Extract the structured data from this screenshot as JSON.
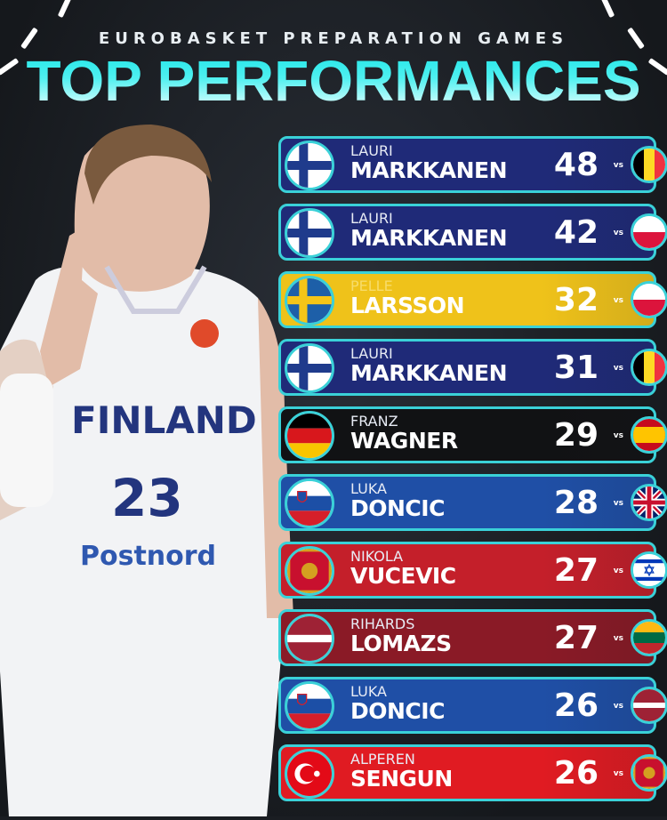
{
  "header": {
    "subtitle": "EUROBASKET PREPARATION GAMES",
    "title": "TOP PERFORMANCES"
  },
  "photo": {
    "jersey_team": "FINLAND",
    "jersey_number": "23",
    "sponsor": "Postnord"
  },
  "colors": {
    "accent": "#3ad1d8",
    "title_cyan": "#20e6e8"
  },
  "performances": [
    {
      "first": "LAURI",
      "last": "MARKKANEN",
      "points": "48",
      "vs": "vs",
      "country": "finland",
      "opponent": "belgium",
      "bar": "#1f2a78"
    },
    {
      "first": "LAURI",
      "last": "MARKKANEN",
      "points": "42",
      "vs": "vs",
      "country": "finland",
      "opponent": "poland",
      "bar": "#1f2a78"
    },
    {
      "first": "PELLE",
      "last": "LARSSON",
      "points": "32",
      "vs": "vs",
      "country": "sweden",
      "opponent": "poland",
      "bar": "#efc21a"
    },
    {
      "first": "LAURI",
      "last": "MARKKANEN",
      "points": "31",
      "vs": "vs",
      "country": "finland",
      "opponent": "belgium",
      "bar": "#1f2a78"
    },
    {
      "first": "FRANZ",
      "last": "WAGNER",
      "points": "29",
      "vs": "vs",
      "country": "germany",
      "opponent": "spain",
      "bar": "#111214"
    },
    {
      "first": "LUKA",
      "last": "DONCIC",
      "points": "28",
      "vs": "vs",
      "country": "slovenia",
      "opponent": "great-britain",
      "bar": "#1f4fa6"
    },
    {
      "first": "NIKOLA",
      "last": "VUCEVIC",
      "points": "27",
      "vs": "vs",
      "country": "montenegro",
      "opponent": "israel",
      "bar": "#c41f2a"
    },
    {
      "first": "RIHARDS",
      "last": "LOMAZS",
      "points": "27",
      "vs": "vs",
      "country": "latvia",
      "opponent": "lithuania",
      "bar": "#8a1a26"
    },
    {
      "first": "LUKA",
      "last": "DONCIC",
      "points": "26",
      "vs": "vs",
      "country": "slovenia",
      "opponent": "latvia",
      "bar": "#1f4fa6"
    },
    {
      "first": "ALPEREN",
      "last": "SENGUN",
      "points": "26",
      "vs": "vs",
      "country": "turkey",
      "opponent": "montenegro",
      "bar": "#e01b22"
    }
  ]
}
